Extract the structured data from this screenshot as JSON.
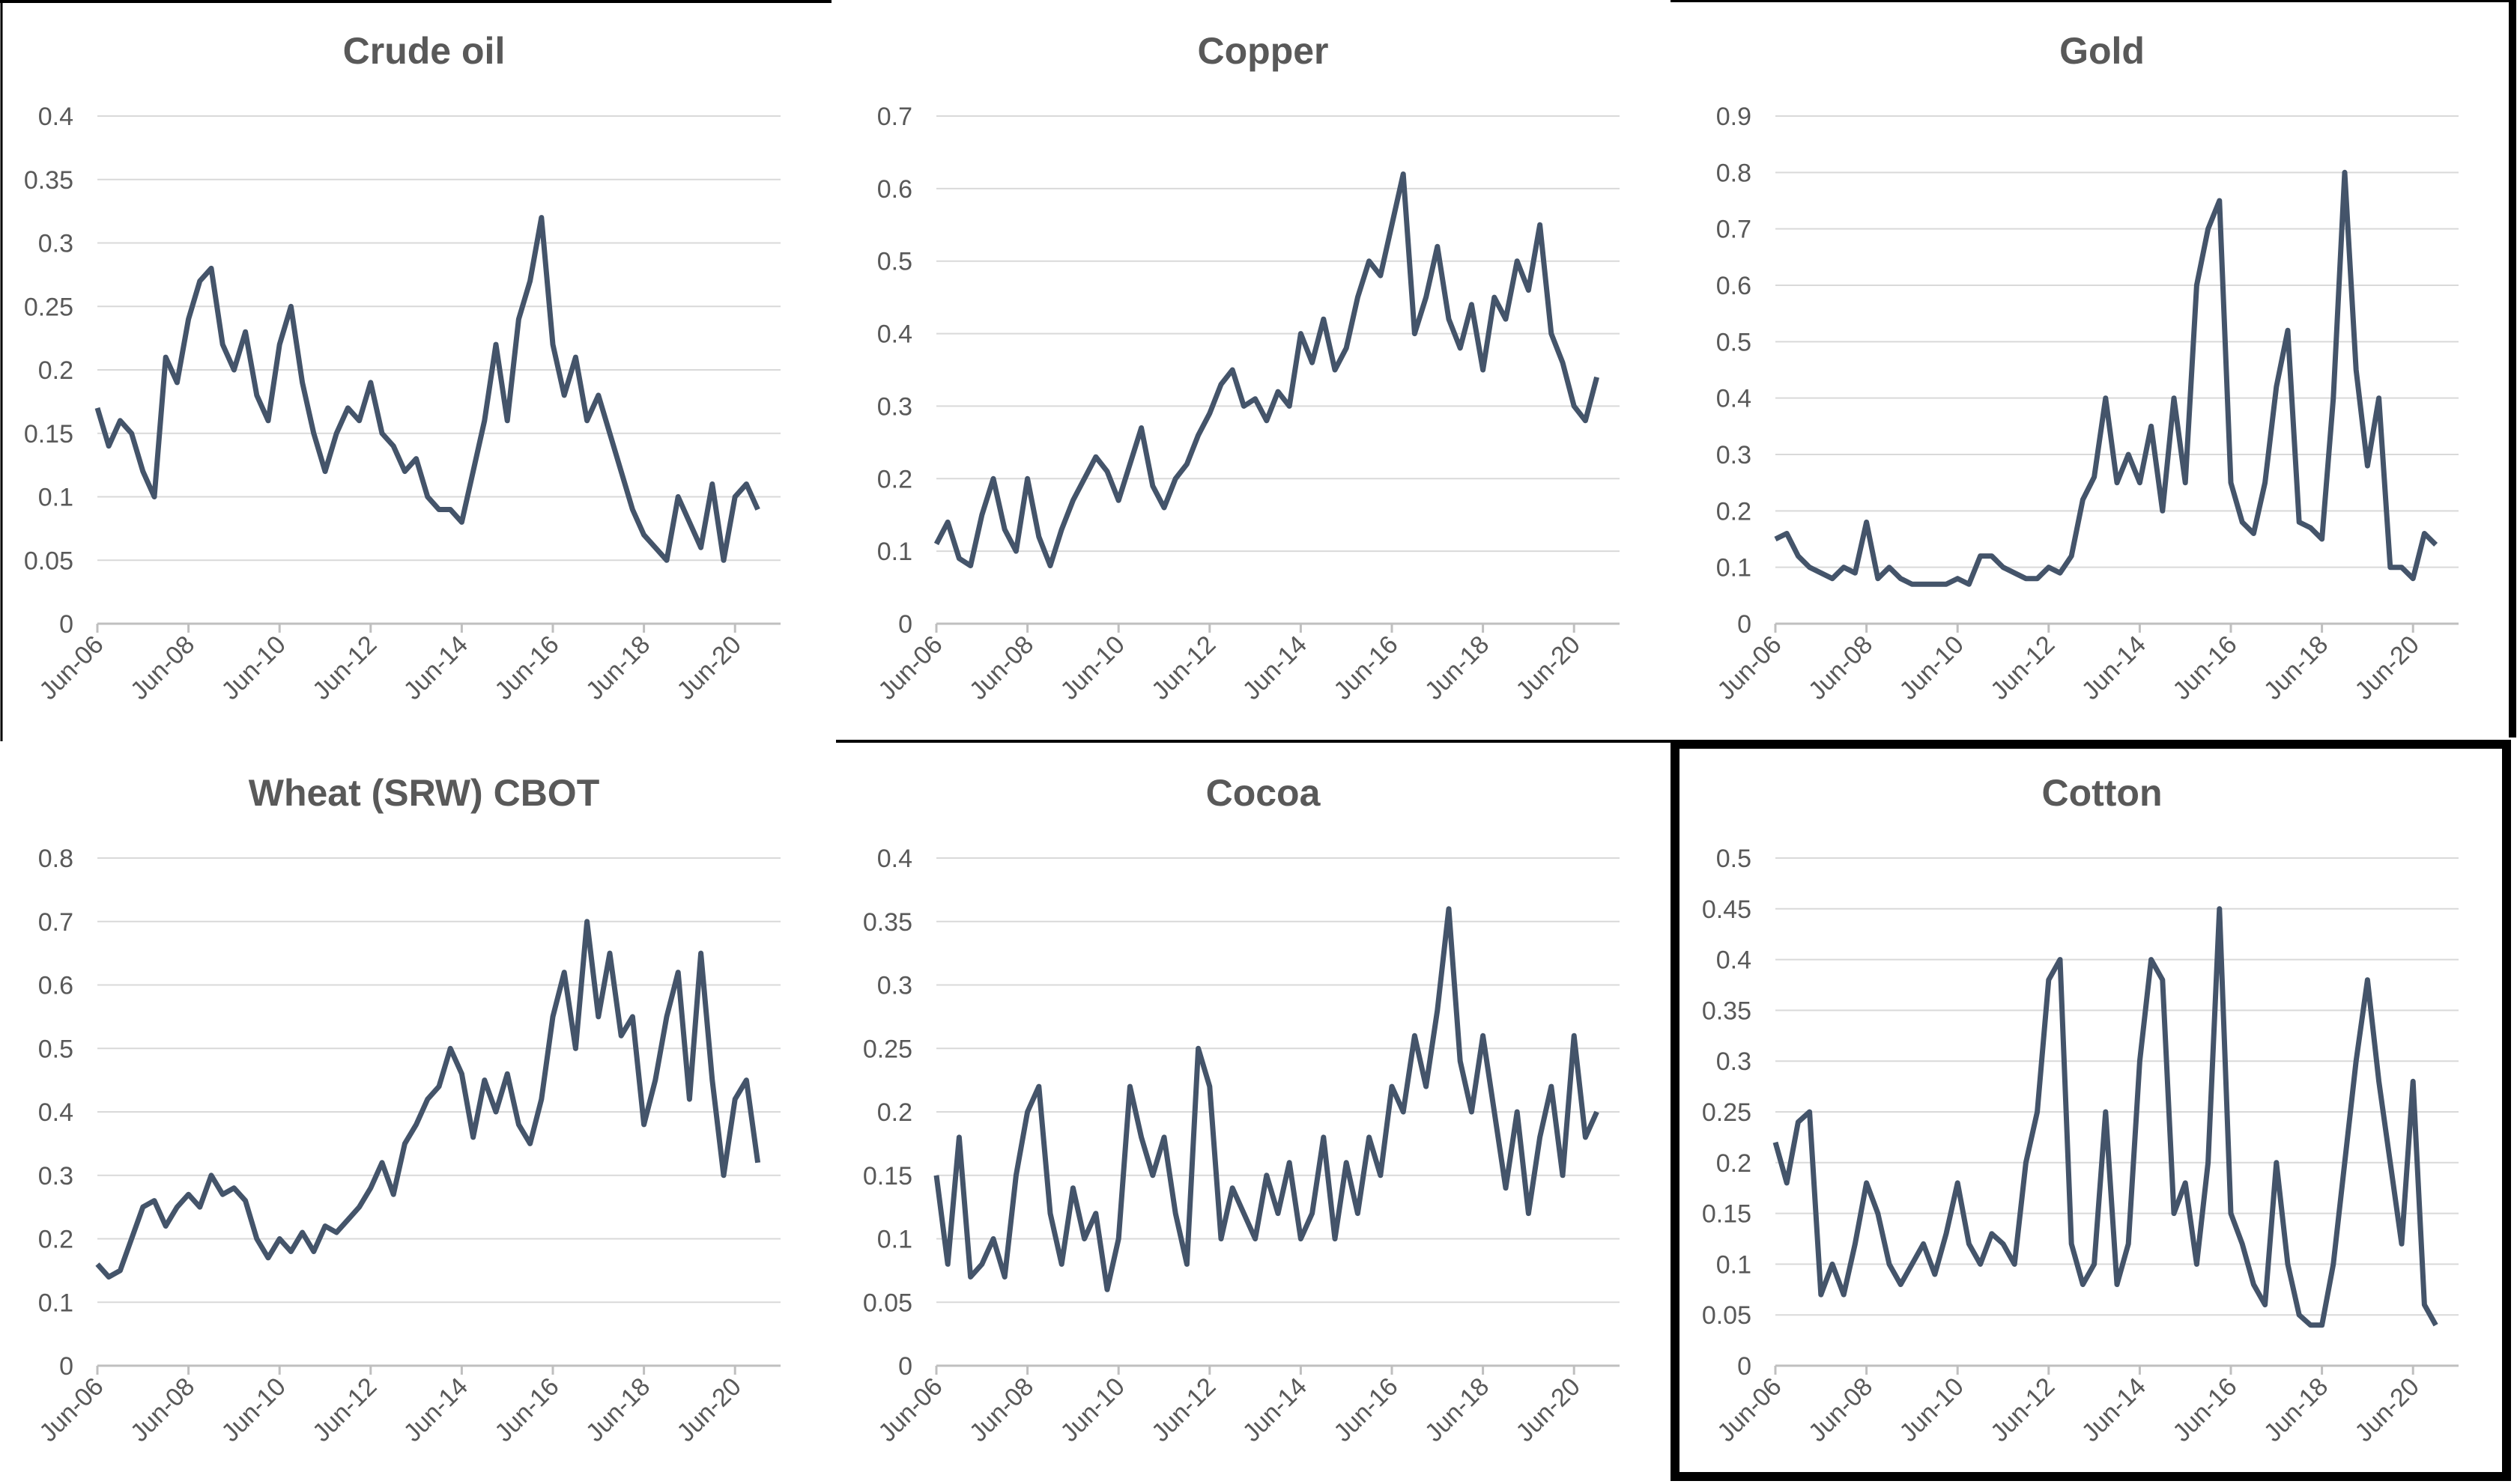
{
  "chart_data": [
    {
      "type": "line",
      "title": "Crude oil",
      "color": "#44546a",
      "ylim": [
        0,
        0.4
      ],
      "yticks": [
        0,
        0.05,
        0.1,
        0.15,
        0.2,
        0.25,
        0.3,
        0.35,
        0.4
      ],
      "grid": true,
      "categories": [
        "Jun-06",
        null,
        null,
        null,
        null,
        null,
        null,
        null,
        "Jun-08",
        null,
        null,
        null,
        null,
        null,
        null,
        null,
        "Jun-10",
        null,
        null,
        null,
        null,
        null,
        null,
        null,
        "Jun-12",
        null,
        null,
        null,
        null,
        null,
        null,
        null,
        "Jun-14",
        null,
        null,
        null,
        null,
        null,
        null,
        null,
        "Jun-16",
        null,
        null,
        null,
        null,
        null,
        null,
        null,
        "Jun-18",
        null,
        null,
        null,
        null,
        null,
        null,
        null,
        "Jun-20",
        null,
        null
      ],
      "values": [
        0.17,
        0.14,
        0.16,
        0.15,
        0.12,
        0.1,
        0.21,
        0.19,
        0.24,
        0.27,
        0.28,
        0.22,
        0.2,
        0.23,
        0.18,
        0.16,
        0.22,
        0.25,
        0.19,
        0.15,
        0.12,
        0.15,
        0.17,
        0.16,
        0.19,
        0.15,
        0.14,
        0.12,
        0.13,
        0.1,
        0.09,
        0.09,
        0.08,
        0.12,
        0.16,
        0.22,
        0.16,
        0.24,
        0.27,
        0.32,
        0.22,
        0.18,
        0.21,
        0.16,
        0.18,
        0.15,
        0.12,
        0.09,
        0.07,
        0.06,
        0.05,
        0.1,
        0.08,
        0.06,
        0.11,
        0.05,
        0.1,
        0.11,
        0.09
      ]
    },
    {
      "type": "line",
      "title": "Copper",
      "color": "#44546a",
      "ylim": [
        0,
        0.7
      ],
      "yticks": [
        0,
        0.1,
        0.2,
        0.3,
        0.4,
        0.5,
        0.6,
        0.7
      ],
      "grid": true,
      "categories": [
        "Jun-06",
        null,
        null,
        null,
        null,
        null,
        null,
        null,
        "Jun-08",
        null,
        null,
        null,
        null,
        null,
        null,
        null,
        "Jun-10",
        null,
        null,
        null,
        null,
        null,
        null,
        null,
        "Jun-12",
        null,
        null,
        null,
        null,
        null,
        null,
        null,
        "Jun-14",
        null,
        null,
        null,
        null,
        null,
        null,
        null,
        "Jun-16",
        null,
        null,
        null,
        null,
        null,
        null,
        null,
        "Jun-18",
        null,
        null,
        null,
        null,
        null,
        null,
        null,
        "Jun-20",
        null,
        null
      ],
      "values": [
        0.11,
        0.14,
        0.09,
        0.08,
        0.15,
        0.2,
        0.13,
        0.1,
        0.2,
        0.12,
        0.08,
        0.13,
        0.17,
        0.2,
        0.23,
        0.21,
        0.17,
        0.22,
        0.27,
        0.19,
        0.16,
        0.2,
        0.22,
        0.26,
        0.29,
        0.33,
        0.35,
        0.3,
        0.31,
        0.28,
        0.32,
        0.3,
        0.4,
        0.36,
        0.42,
        0.35,
        0.38,
        0.45,
        0.5,
        0.48,
        0.55,
        0.62,
        0.4,
        0.45,
        0.52,
        0.42,
        0.38,
        0.44,
        0.35,
        0.45,
        0.42,
        0.5,
        0.46,
        0.55,
        0.4,
        0.36,
        0.3,
        0.28,
        0.34
      ]
    },
    {
      "type": "line",
      "title": "Gold",
      "color": "#44546a",
      "ylim": [
        0,
        0.9
      ],
      "yticks": [
        0,
        0.1,
        0.2,
        0.3,
        0.4,
        0.5,
        0.6,
        0.7,
        0.8,
        0.9
      ],
      "grid": true,
      "categories": [
        "Jun-06",
        null,
        null,
        null,
        null,
        null,
        null,
        null,
        "Jun-08",
        null,
        null,
        null,
        null,
        null,
        null,
        null,
        "Jun-10",
        null,
        null,
        null,
        null,
        null,
        null,
        null,
        "Jun-12",
        null,
        null,
        null,
        null,
        null,
        null,
        null,
        "Jun-14",
        null,
        null,
        null,
        null,
        null,
        null,
        null,
        "Jun-16",
        null,
        null,
        null,
        null,
        null,
        null,
        null,
        "Jun-18",
        null,
        null,
        null,
        null,
        null,
        null,
        null,
        "Jun-20",
        null,
        null
      ],
      "values": [
        0.15,
        0.16,
        0.12,
        0.1,
        0.09,
        0.08,
        0.1,
        0.09,
        0.18,
        0.08,
        0.1,
        0.08,
        0.07,
        0.07,
        0.07,
        0.07,
        0.08,
        0.07,
        0.12,
        0.12,
        0.1,
        0.09,
        0.08,
        0.08,
        0.1,
        0.09,
        0.12,
        0.22,
        0.26,
        0.4,
        0.25,
        0.3,
        0.25,
        0.35,
        0.2,
        0.4,
        0.25,
        0.6,
        0.7,
        0.75,
        0.25,
        0.18,
        0.16,
        0.25,
        0.42,
        0.52,
        0.18,
        0.17,
        0.15,
        0.4,
        0.8,
        0.45,
        0.28,
        0.4,
        0.1,
        0.1,
        0.08,
        0.16,
        0.14
      ]
    },
    {
      "type": "line",
      "title": "Wheat (SRW) CBOT",
      "color": "#44546a",
      "ylim": [
        0,
        0.8
      ],
      "yticks": [
        0,
        0.1,
        0.2,
        0.3,
        0.4,
        0.5,
        0.6,
        0.7,
        0.8
      ],
      "grid": true,
      "categories": [
        "Jun-06",
        null,
        null,
        null,
        null,
        null,
        null,
        null,
        "Jun-08",
        null,
        null,
        null,
        null,
        null,
        null,
        null,
        "Jun-10",
        null,
        null,
        null,
        null,
        null,
        null,
        null,
        "Jun-12",
        null,
        null,
        null,
        null,
        null,
        null,
        null,
        "Jun-14",
        null,
        null,
        null,
        null,
        null,
        null,
        null,
        "Jun-16",
        null,
        null,
        null,
        null,
        null,
        null,
        null,
        "Jun-18",
        null,
        null,
        null,
        null,
        null,
        null,
        null,
        "Jun-20",
        null,
        null
      ],
      "values": [
        0.16,
        0.14,
        0.15,
        0.2,
        0.25,
        0.26,
        0.22,
        0.25,
        0.27,
        0.25,
        0.3,
        0.27,
        0.28,
        0.26,
        0.2,
        0.17,
        0.2,
        0.18,
        0.21,
        0.18,
        0.22,
        0.21,
        0.23,
        0.25,
        0.28,
        0.32,
        0.27,
        0.35,
        0.38,
        0.42,
        0.44,
        0.5,
        0.46,
        0.36,
        0.45,
        0.4,
        0.46,
        0.38,
        0.35,
        0.42,
        0.55,
        0.62,
        0.5,
        0.7,
        0.55,
        0.65,
        0.52,
        0.55,
        0.38,
        0.45,
        0.55,
        0.62,
        0.42,
        0.65,
        0.45,
        0.3,
        0.42,
        0.45,
        0.32
      ]
    },
    {
      "type": "line",
      "title": "Cocoa",
      "color": "#44546a",
      "ylim": [
        0,
        0.4
      ],
      "yticks": [
        0,
        0.05,
        0.1,
        0.15,
        0.2,
        0.25,
        0.3,
        0.35,
        0.4
      ],
      "grid": true,
      "categories": [
        "Jun-06",
        null,
        null,
        null,
        null,
        null,
        null,
        null,
        "Jun-08",
        null,
        null,
        null,
        null,
        null,
        null,
        null,
        "Jun-10",
        null,
        null,
        null,
        null,
        null,
        null,
        null,
        "Jun-12",
        null,
        null,
        null,
        null,
        null,
        null,
        null,
        "Jun-14",
        null,
        null,
        null,
        null,
        null,
        null,
        null,
        "Jun-16",
        null,
        null,
        null,
        null,
        null,
        null,
        null,
        "Jun-18",
        null,
        null,
        null,
        null,
        null,
        null,
        null,
        "Jun-20",
        null,
        null
      ],
      "values": [
        0.15,
        0.08,
        0.18,
        0.07,
        0.08,
        0.1,
        0.07,
        0.15,
        0.2,
        0.22,
        0.12,
        0.08,
        0.14,
        0.1,
        0.12,
        0.06,
        0.1,
        0.22,
        0.18,
        0.15,
        0.18,
        0.12,
        0.08,
        0.25,
        0.22,
        0.1,
        0.14,
        0.12,
        0.1,
        0.15,
        0.12,
        0.16,
        0.1,
        0.12,
        0.18,
        0.1,
        0.16,
        0.12,
        0.18,
        0.15,
        0.22,
        0.2,
        0.26,
        0.22,
        0.28,
        0.36,
        0.24,
        0.2,
        0.26,
        0.2,
        0.14,
        0.2,
        0.12,
        0.18,
        0.22,
        0.15,
        0.26,
        0.18,
        0.2
      ]
    },
    {
      "type": "line",
      "title": "Cotton",
      "color": "#44546a",
      "ylim": [
        0,
        0.5
      ],
      "yticks": [
        0,
        0.05,
        0.1,
        0.15,
        0.2,
        0.25,
        0.3,
        0.35,
        0.4,
        0.45,
        0.5
      ],
      "grid": true,
      "categories": [
        "Jun-06",
        null,
        null,
        null,
        null,
        null,
        null,
        null,
        "Jun-08",
        null,
        null,
        null,
        null,
        null,
        null,
        null,
        "Jun-10",
        null,
        null,
        null,
        null,
        null,
        null,
        null,
        "Jun-12",
        null,
        null,
        null,
        null,
        null,
        null,
        null,
        "Jun-14",
        null,
        null,
        null,
        null,
        null,
        null,
        null,
        "Jun-16",
        null,
        null,
        null,
        null,
        null,
        null,
        null,
        "Jun-18",
        null,
        null,
        null,
        null,
        null,
        null,
        null,
        "Jun-20",
        null,
        null
      ],
      "values": [
        0.22,
        0.18,
        0.24,
        0.25,
        0.07,
        0.1,
        0.07,
        0.12,
        0.18,
        0.15,
        0.1,
        0.08,
        0.1,
        0.12,
        0.09,
        0.13,
        0.18,
        0.12,
        0.1,
        0.13,
        0.12,
        0.1,
        0.2,
        0.25,
        0.38,
        0.4,
        0.12,
        0.08,
        0.1,
        0.25,
        0.08,
        0.12,
        0.3,
        0.4,
        0.38,
        0.15,
        0.18,
        0.1,
        0.2,
        0.45,
        0.15,
        0.12,
        0.08,
        0.06,
        0.2,
        0.1,
        0.05,
        0.04,
        0.04,
        0.1,
        0.2,
        0.3,
        0.38,
        0.28,
        0.2,
        0.12,
        0.28,
        0.06,
        0.04
      ]
    }
  ]
}
